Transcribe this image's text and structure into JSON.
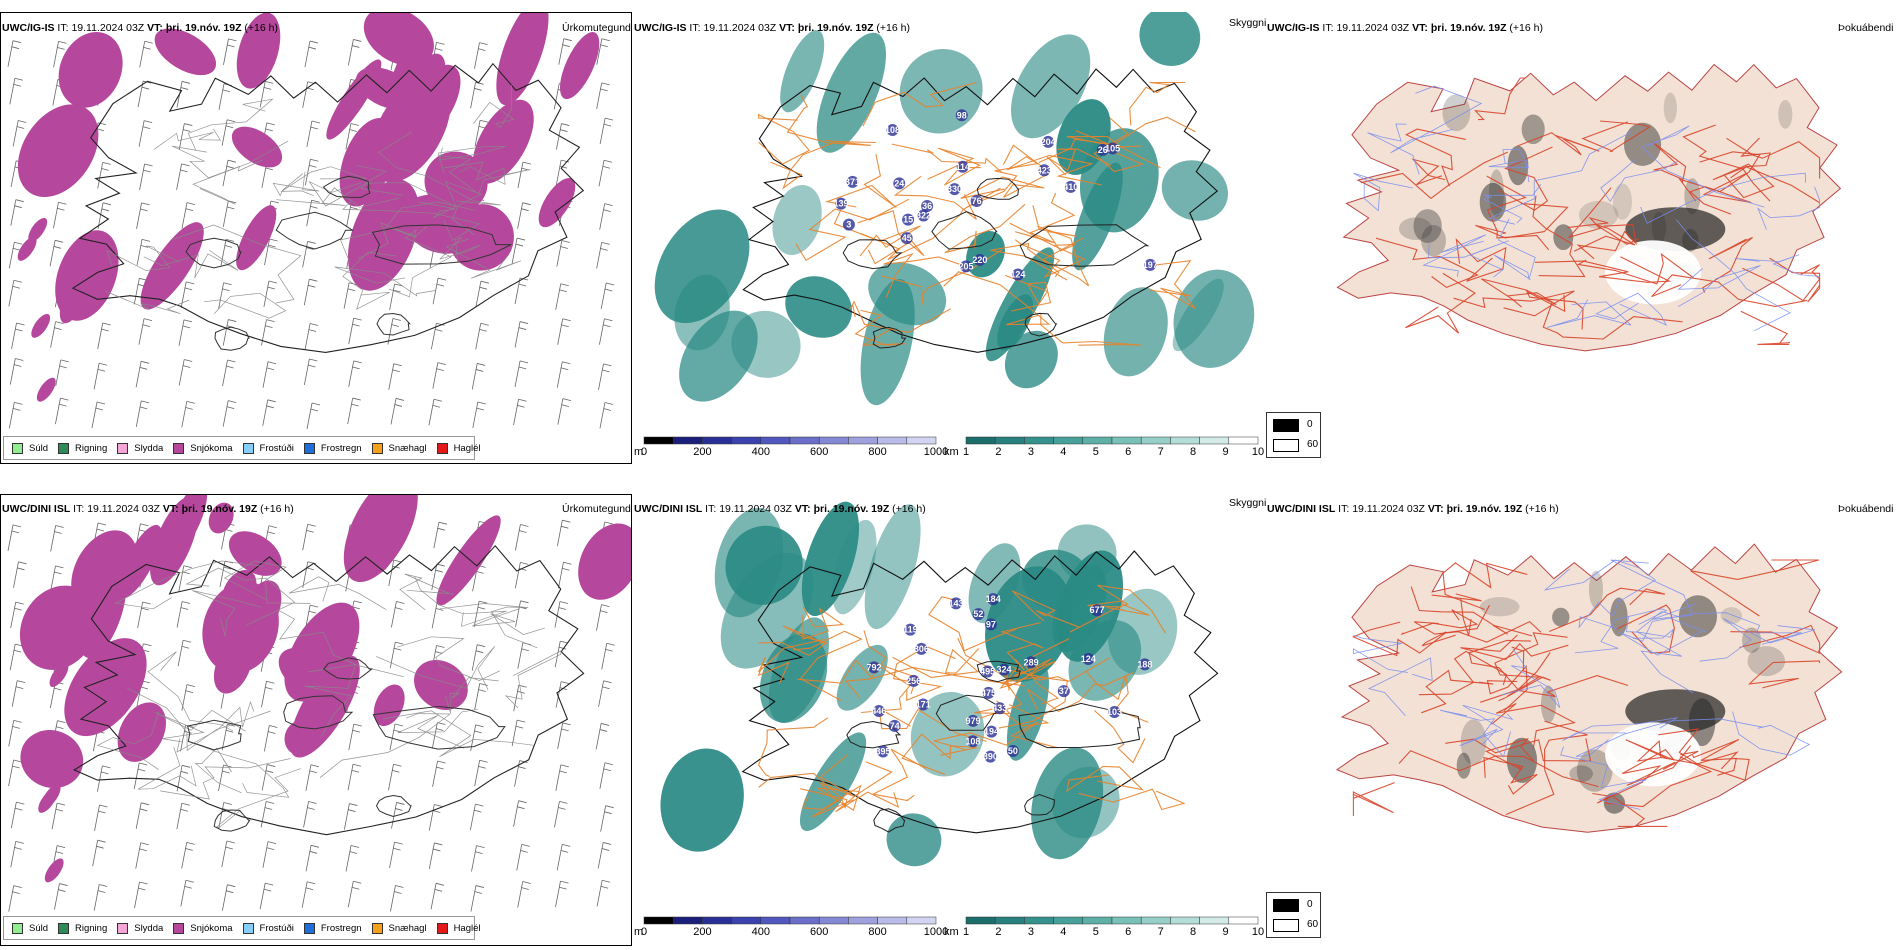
{
  "rows": [
    {
      "model": "UWC/IG-IS",
      "init_label": "IT:",
      "init_time": "19.11.2024 03Z",
      "valid_label": "VT:",
      "valid_time": "þri. 19.nóv. 19Z",
      "lead": "(+16 h)"
    },
    {
      "model": "UWC/DINI ISL",
      "init_label": "IT:",
      "init_time": "19.11.2024 03Z",
      "valid_label": "VT:",
      "valid_time": "þri. 19.nóv. 19Z",
      "lead": "(+16 h)"
    }
  ],
  "panel_titles": {
    "precip_type": "Úrkomutegund",
    "visibility": "Skyggni",
    "fog_index": "Þokuábendi"
  },
  "precip_legend": [
    {
      "label": "Súld",
      "color": "#90ee90"
    },
    {
      "label": "Rigning",
      "color": "#2e8b57"
    },
    {
      "label": "Slydda",
      "color": "#f4a6d7"
    },
    {
      "label": "Snjókoma",
      "color": "#b5489c"
    },
    {
      "label": "Frostúði",
      "color": "#87cefa"
    },
    {
      "label": "Frostregn",
      "color": "#1e6fd9"
    },
    {
      "label": "Snæhagl",
      "color": "#f5a21b"
    },
    {
      "label": "Haglél",
      "color": "#e31a1c"
    }
  ],
  "ceiling_bar": {
    "unit": "m",
    "ticks": [
      "0",
      "200",
      "400",
      "600",
      "800",
      "1000"
    ],
    "colors": [
      "#000000",
      "#1c1f7a",
      "#2a2f96",
      "#3c42ad",
      "#5257bd",
      "#6b6fc9",
      "#8588d5",
      "#9fa1df",
      "#b9bbe8",
      "#d3d4f1"
    ]
  },
  "vis_bar": {
    "unit": "km",
    "ticks": [
      "1",
      "2",
      "3",
      "4",
      "5",
      "6",
      "7",
      "8",
      "9",
      "10"
    ],
    "colors": [
      "#1b6e6a",
      "#27807b",
      "#35918b",
      "#47a19a",
      "#5db0a8",
      "#78c0b8",
      "#95cfc7",
      "#b3ddd6",
      "#d2ebe6",
      "#ffffff"
    ]
  },
  "fog_legend": {
    "high_label": "0",
    "low_label": "60"
  },
  "ceiling_labels_top": [
    "322",
    "139",
    "26",
    "76",
    "410",
    "330",
    "423",
    "205",
    "24",
    "204",
    "371",
    "45",
    "36",
    "98",
    "15",
    "114",
    "220",
    "197",
    "124",
    "105",
    "108",
    "3"
  ],
  "ceiling_labels_bottom": [
    "446",
    "143",
    "979",
    "324",
    "37",
    "184",
    "475",
    "433",
    "256",
    "306",
    "188",
    "50",
    "677",
    "495",
    "97",
    "390",
    "395",
    "792",
    "194",
    "171",
    "74",
    "52",
    "119",
    "289",
    "124",
    "103",
    "108"
  ],
  "colors": {
    "snow": "#b5489c",
    "vis_teal": "#2a8a84",
    "road_orange": "#e8822a",
    "road_red": "#d9442a",
    "land_fog": "#f2e1d4",
    "river_blue": "#7a8ef0",
    "ceiling_blue": "#2a2f96"
  }
}
